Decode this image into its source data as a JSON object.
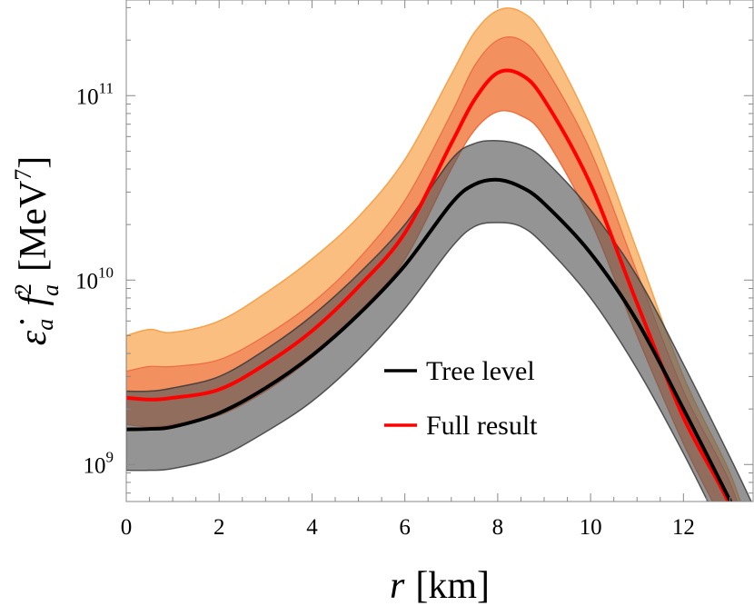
{
  "chart_data": {
    "type": "area",
    "xlabel_var": "r",
    "xlabel_unit": "[km]",
    "ylabel_var": "ε̇",
    "ylabel_sub_a": "a",
    "ylabel_f": "f",
    "ylabel_sup": "2",
    "ylabel_sub_b": "a",
    "ylabel_unit": "[MeV",
    "ylabel_unit_exp": "7",
    "ylabel_unit_close": "]",
    "xlim": [
      0,
      13.5
    ],
    "ylim": [
      630000000.0,
      330000000000.0
    ],
    "yscale": "log",
    "x_ticks": [
      0,
      2,
      4,
      6,
      8,
      10,
      12
    ],
    "y_major_ticks": [
      {
        "value": 1000000000.0,
        "base": "10",
        "exp": "9"
      },
      {
        "value": 10000000000.0,
        "base": "10",
        "exp": "10"
      },
      {
        "value": 100000000000.0,
        "base": "10",
        "exp": "11"
      }
    ],
    "legend_position": "center",
    "legend": [
      {
        "label": "Tree level",
        "color": "#000000"
      },
      {
        "label": "Full result",
        "color": "#ff0000"
      }
    ],
    "colors": {
      "tree_band": "#5a5a5a",
      "full_outer_band": "#f7a24a",
      "full_inner_band": "#ee6a45",
      "tree_line": "#000000",
      "full_line": "#ff0000"
    },
    "x": [
      0,
      0.5,
      1,
      2,
      3,
      4,
      5,
      6,
      7,
      7.5,
      8,
      8.5,
      9,
      10,
      11,
      12,
      13,
      13.5
    ],
    "series": [
      {
        "name": "Tree level",
        "central": [
          1550000000.0,
          1560000000.0,
          1600000000.0,
          1900000000.0,
          2600000000.0,
          3900000000.0,
          6500000000.0,
          12000000000.0,
          26000000000.0,
          33000000000.0,
          35000000000.0,
          32000000000.0,
          26000000000.0,
          14000000000.0,
          6000000000.0,
          2000000000.0,
          640000000.0,
          350000000.0
        ],
        "band_low": [
          930000000.0,
          930000000.0,
          950000000.0,
          1100000000.0,
          1500000000.0,
          2200000000.0,
          3700000000.0,
          7000000000.0,
          15000000000.0,
          19500000000.0,
          20500000000.0,
          19500000000.0,
          15500000000.0,
          8000000000.0,
          3300000000.0,
          1150000000.0,
          360000000.0,
          200000000.0
        ],
        "band_high": [
          2500000000.0,
          2500000000.0,
          2600000000.0,
          3000000000.0,
          4200000000.0,
          6400000000.0,
          10800000000.0,
          20000000000.0,
          45000000000.0,
          55000000000.0,
          57000000000.0,
          54000000000.0,
          45000000000.0,
          24000000000.0,
          10500000000.0,
          3500000000.0,
          1100000000.0,
          600000000.0
        ]
      },
      {
        "name": "Full result",
        "central": [
          2300000000.0,
          2250000000.0,
          2300000000.0,
          2550000000.0,
          3500000000.0,
          5300000000.0,
          9200000000.0,
          18000000000.0,
          55000000000.0,
          95000000000.0,
          133000000000.0,
          130000000000.0,
          95000000000.0,
          33000000000.0,
          7500000000.0,
          1800000000.0,
          600000000.0,
          240000000.0
        ],
        "band_low": [
          1650000000.0,
          1600000000.0,
          1650000000.0,
          1850000000.0,
          2500000000.0,
          3800000000.0,
          6500000000.0,
          13000000000.0,
          40000000000.0,
          65000000000.0,
          82000000000.0,
          78000000000.0,
          60000000000.0,
          21000000000.0,
          5000000000.0,
          1300000000.0,
          400000000.0,
          160000000.0
        ],
        "band_mid_high": [
          3200000000.0,
          3400000000.0,
          3400000000.0,
          3700000000.0,
          5000000000.0,
          7500000000.0,
          13000000000.0,
          27000000000.0,
          80000000000.0,
          145000000000.0,
          200000000000.0,
          200000000000.0,
          145000000000.0,
          50000000000.0,
          11000000000.0,
          2500000000.0,
          800000000.0,
          320000000.0
        ],
        "band_high": [
          5000000000.0,
          5400000000.0,
          5200000000.0,
          6000000000.0,
          8500000000.0,
          13000000000.0,
          22000000000.0,
          45000000000.0,
          130000000000.0,
          220000000000.0,
          290000000000.0,
          285000000000.0,
          210000000000.0,
          68000000000.0,
          14500000000.0,
          3000000000.0,
          900000000.0,
          380000000.0
        ]
      }
    ]
  }
}
